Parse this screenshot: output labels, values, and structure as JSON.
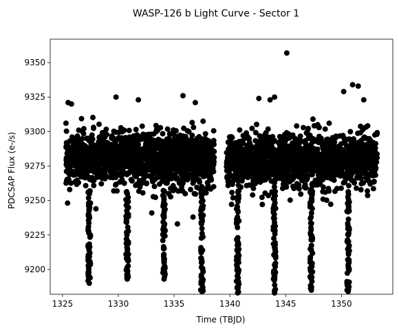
{
  "chart_data": {
    "type": "scatter",
    "title": "WASP-126 b Light Curve - Sector 1",
    "xlabel": "Time (TBJD)",
    "ylabel": "PDCSAP Flux (e-/s)",
    "xlim": [
      1323.9,
      1354.6
    ],
    "ylim": [
      9182,
      9367
    ],
    "xticks": [
      1325,
      1330,
      1335,
      1340,
      1345,
      1350
    ],
    "yticks": [
      9200,
      9225,
      9250,
      9275,
      9300,
      9325,
      9350
    ],
    "grid": false,
    "marker_color": "#000000",
    "segments": [
      {
        "x_start": 1325.3,
        "x_end": 1338.6,
        "y_center": 9280,
        "y_spread": 22
      },
      {
        "x_start": 1339.7,
        "x_end": 1353.2,
        "y_center": 9279,
        "y_spread": 22
      }
    ],
    "transits": [
      {
        "x": 1327.4,
        "depth_min": 9190
      },
      {
        "x": 1330.8,
        "depth_min": 9193
      },
      {
        "x": 1334.1,
        "depth_min": 9193
      },
      {
        "x": 1337.5,
        "depth_min": 9184
      },
      {
        "x": 1340.7,
        "depth_min": 9183
      },
      {
        "x": 1344.0,
        "depth_min": 9183
      },
      {
        "x": 1347.3,
        "depth_min": 9185
      },
      {
        "x": 1350.6,
        "depth_min": 9184
      }
    ],
    "outliers": [
      {
        "x": 1325.5,
        "y": 9321
      },
      {
        "x": 1325.8,
        "y": 9320
      },
      {
        "x": 1329.8,
        "y": 9325
      },
      {
        "x": 1331.8,
        "y": 9323
      },
      {
        "x": 1335.8,
        "y": 9326
      },
      {
        "x": 1336.9,
        "y": 9321
      },
      {
        "x": 1342.6,
        "y": 9324
      },
      {
        "x": 1344.0,
        "y": 9325
      },
      {
        "x": 1343.6,
        "y": 9323
      },
      {
        "x": 1345.1,
        "y": 9357
      },
      {
        "x": 1350.2,
        "y": 9329
      },
      {
        "x": 1351.0,
        "y": 9334
      },
      {
        "x": 1351.5,
        "y": 9333
      },
      {
        "x": 1352.0,
        "y": 9323
      },
      {
        "x": 1335.3,
        "y": 9233
      },
      {
        "x": 1336.7,
        "y": 9238
      },
      {
        "x": 1328.0,
        "y": 9244
      },
      {
        "x": 1333.0,
        "y": 9241
      }
    ]
  }
}
